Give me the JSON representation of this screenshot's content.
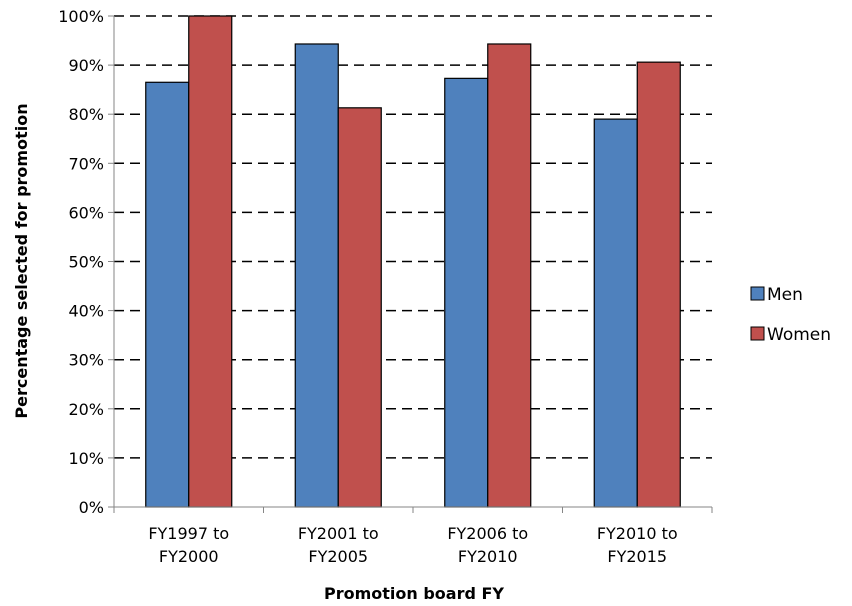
{
  "chart_data": {
    "type": "bar",
    "title": "",
    "xlabel": "Promotion board FY",
    "ylabel": "Percentage selected for promotion",
    "ylim": [
      0,
      100
    ],
    "yticks": [
      "0%",
      "10%",
      "20%",
      "30%",
      "40%",
      "50%",
      "60%",
      "70%",
      "80%",
      "90%",
      "100%"
    ],
    "categories": [
      [
        "FY1997 to",
        "FY2000"
      ],
      [
        "FY2001 to",
        "FY2005"
      ],
      [
        "FY2006 to",
        "FY2010"
      ],
      [
        "FY2010 to",
        "FY2015"
      ]
    ],
    "series": [
      {
        "name": "Men",
        "color": "#4f81bd",
        "values": [
          86.5,
          94.3,
          87.3,
          79.0
        ]
      },
      {
        "name": "Women",
        "color": "#c0504d",
        "values": [
          100,
          81.3,
          94.3,
          90.6
        ]
      }
    ],
    "grid": true,
    "legend": "right"
  }
}
